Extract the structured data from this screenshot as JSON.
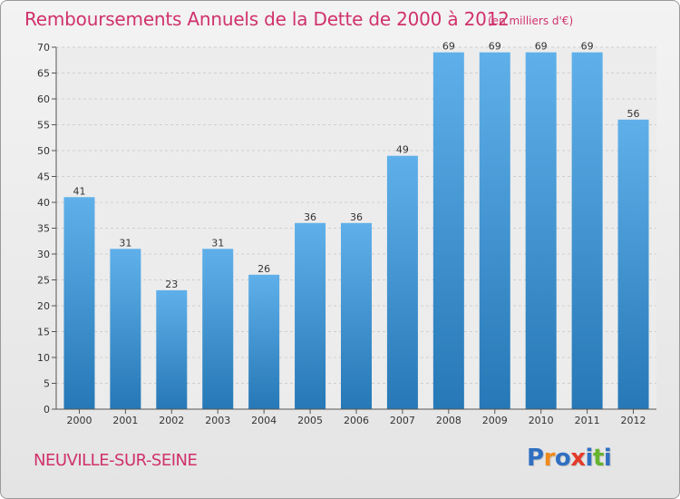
{
  "title": "Remboursements Annuels de la Dette de 2000 à 2012",
  "unit": "(en milliers d'€)",
  "commune": "NEUVILLE-SUR-SEINE",
  "logo": {
    "letters": [
      "P",
      "r",
      "o",
      "x",
      "i",
      "t",
      "i"
    ],
    "colors": [
      "#2f6fc1",
      "#f08a1c",
      "#2f6fc1",
      "#e33b2a",
      "#2f6fc1",
      "#66b32e",
      "#2f6fc1"
    ]
  },
  "colors": {
    "bar_light": "#5fb0ea",
    "bar_dark": "#2678b6",
    "title": "#d0316c"
  },
  "chart_data": {
    "type": "bar",
    "categories": [
      "2000",
      "2001",
      "2002",
      "2003",
      "2004",
      "2005",
      "2006",
      "2007",
      "2008",
      "2009",
      "2010",
      "2011",
      "2012"
    ],
    "values": [
      41,
      31,
      23,
      31,
      26,
      36,
      36,
      49,
      69,
      69,
      69,
      69,
      56
    ],
    "data_labels": [
      "41",
      "31",
      "23",
      "31",
      "26",
      "36",
      "36",
      "49",
      "69",
      "69",
      "69",
      "69",
      "56"
    ],
    "ylim": [
      0,
      70
    ],
    "yticks": [
      0,
      5,
      10,
      15,
      20,
      25,
      30,
      35,
      40,
      45,
      50,
      55,
      60,
      65,
      70
    ],
    "ytick_labels": [
      "0",
      "5",
      "10",
      "15",
      "20",
      "25",
      "30",
      "35",
      "40",
      "45",
      "50",
      "55",
      "60",
      "65",
      "70"
    ],
    "grid": true
  }
}
